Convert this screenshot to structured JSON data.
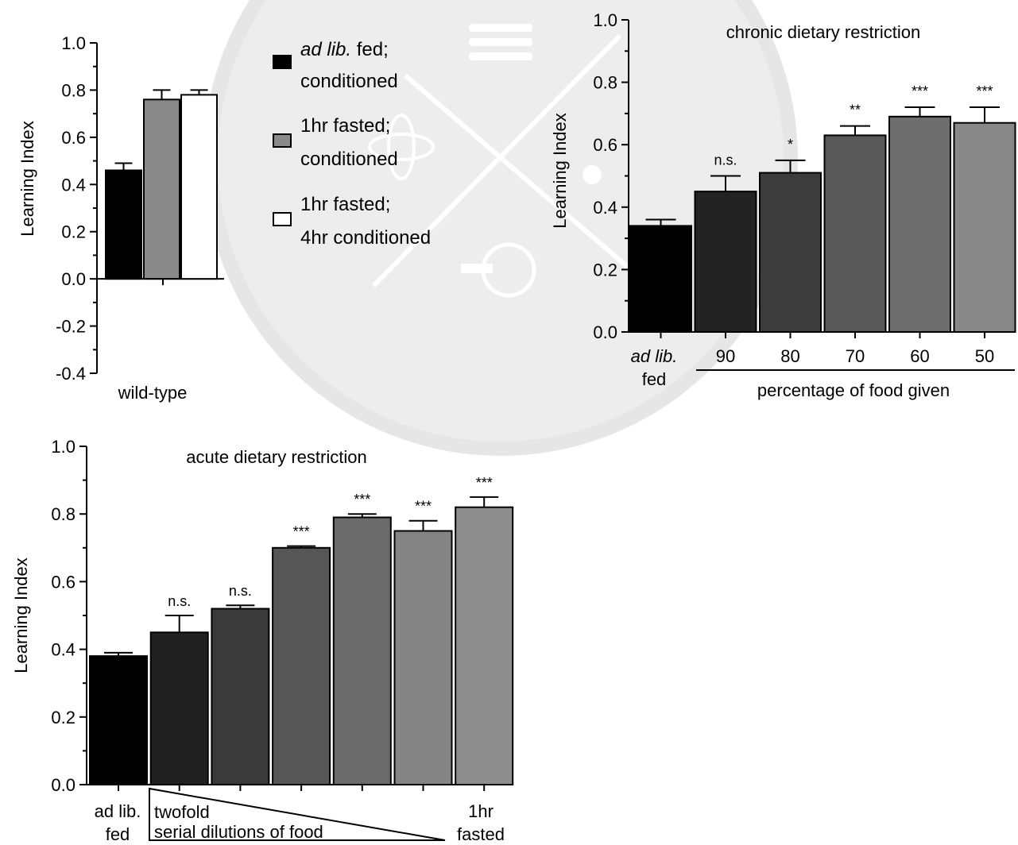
{
  "chart_data": [
    {
      "id": "wildtype",
      "type": "bar",
      "ylabel": "Learning Index",
      "xlabel": "wild-type",
      "ylim": [
        -0.4,
        1.0
      ],
      "yticks": [
        "1.0",
        "0.8",
        "0.6",
        "0.4",
        "0.2",
        "0.0",
        "-0.2",
        "-0.4"
      ],
      "legend": [
        {
          "lines": [
            "ad lib. fed;",
            "conditioned"
          ],
          "color": "#000000"
        },
        {
          "lines": [
            "1hr fasted;",
            "conditioned"
          ],
          "color": "#8a8a8a"
        },
        {
          "lines": [
            "1hr fasted;",
            "4hr conditioned"
          ],
          "color": "#ffffff"
        }
      ],
      "series": [
        {
          "name": "ad lib. fed; conditioned",
          "value": 0.46,
          "error": 0.03,
          "color": "#000000"
        },
        {
          "name": "1hr fasted; conditioned",
          "value": 0.76,
          "error": 0.04,
          "color": "#8a8a8a"
        },
        {
          "name": "1hr fasted; 4hr conditioned",
          "value": 0.78,
          "error": 0.02,
          "color": "#ffffff"
        }
      ]
    },
    {
      "id": "chronic",
      "type": "bar",
      "title": "chronic dietary restriction",
      "ylabel": "Learning Index",
      "xlabel": "percentage of food given",
      "ylim": [
        0.0,
        1.0
      ],
      "yticks": [
        "1.0",
        "0.8",
        "0.6",
        "0.4",
        "0.2",
        "0.0"
      ],
      "categories": [
        "ad lib. fed",
        "90",
        "80",
        "70",
        "60",
        "50"
      ],
      "values": [
        0.34,
        0.45,
        0.51,
        0.63,
        0.69,
        0.67
      ],
      "errors": [
        0.02,
        0.05,
        0.04,
        0.03,
        0.03,
        0.05
      ],
      "significance": [
        "",
        "n.s.",
        "*",
        "**",
        "***",
        "***"
      ],
      "colors": [
        "#000000",
        "#232323",
        "#3c3c3c",
        "#585858",
        "#6d6d6d",
        "#888888"
      ]
    },
    {
      "id": "acute",
      "type": "bar",
      "title": "acute dietary restriction",
      "ylabel": "Learning Index",
      "xlabel": "twofold serial dilutions of food",
      "ylim": [
        0.0,
        1.0
      ],
      "yticks": [
        "1.0",
        "0.8",
        "0.6",
        "0.4",
        "0.2",
        "0.0"
      ],
      "categories": [
        "ad lib. fed",
        "",
        "",
        "",
        "",
        "",
        "1hr fasted"
      ],
      "values": [
        0.38,
        0.45,
        0.52,
        0.7,
        0.79,
        0.75,
        0.82
      ],
      "errors": [
        0.01,
        0.05,
        0.01,
        0.005,
        0.01,
        0.03,
        0.03
      ],
      "significance": [
        "",
        "n.s.",
        "n.s.",
        "***",
        "***",
        "***",
        "***"
      ],
      "colors": [
        "#000000",
        "#202020",
        "#3a3a3a",
        "#565656",
        "#6b6b6b",
        "#848484",
        "#8e8e8e"
      ]
    }
  ],
  "labels": {
    "wt_legend_line1a": "ad lib.",
    "wt_legend_line1b": " fed;",
    "chronic_first_cat_a": "ad lib.",
    "chronic_first_cat_b": "fed",
    "acute_first_cat_a": "ad lib.",
    "acute_first_cat_b": "fed",
    "acute_last_cat_a": "1hr",
    "acute_last_cat_b": "fasted",
    "acute_wedge_a": "twofold",
    "acute_wedge_b": "serial dilutions of food"
  }
}
